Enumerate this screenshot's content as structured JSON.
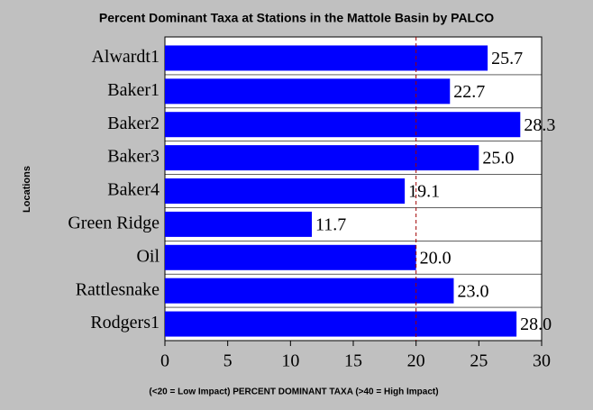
{
  "chart_data": {
    "type": "hbar",
    "title": "Percent Dominant Taxa at Stations in the Mattole Basin by PALCO",
    "x_label": "(<20 = Low Impact) PERCENT DOMINANT TAXA (>40 = High Impact)",
    "y_label": "Locations",
    "categories": [
      "Alwardt1",
      "Baker1",
      "Baker2",
      "Baker3",
      "Baker4",
      "Green Ridge",
      "Oil",
      "Rattlesnake",
      "Rodgers1"
    ],
    "values": [
      25.7,
      22.7,
      28.3,
      25,
      19.1,
      11.7,
      20,
      23,
      28
    ],
    "value_labels": [
      "25.7",
      "22.7",
      "28.3",
      "25.0",
      "19.1",
      "11.7",
      "20.0",
      "23.0",
      "28.0"
    ],
    "color": "#0000ff",
    "xlim": [
      0,
      30
    ],
    "xticks": [
      0,
      5,
      10,
      15,
      20,
      25,
      30
    ],
    "reference_line": {
      "value": 20,
      "color": "#a00000"
    }
  }
}
